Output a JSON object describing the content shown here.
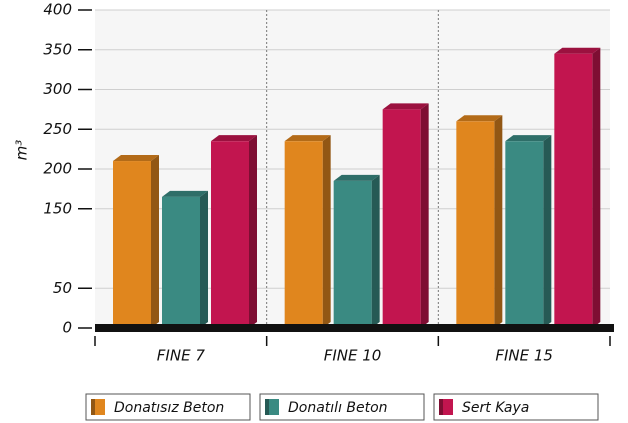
{
  "chart_data": {
    "type": "bar3d",
    "y_label": "m³",
    "categories": [
      "FINE 7",
      "FINE 10",
      "FINE 15"
    ],
    "series": [
      {
        "name": "Donatısız Beton",
        "color": "#e0861e",
        "values": [
          210,
          235,
          260
        ]
      },
      {
        "name": "Donatılı Beton",
        "color": "#3a8a82",
        "values": [
          165,
          185,
          235
        ]
      },
      {
        "name": "Sert Kaya",
        "color": "#c2154f",
        "values": [
          235,
          275,
          345
        ]
      }
    ],
    "ylim": [
      0,
      400
    ],
    "yticks": [
      0,
      50,
      150,
      200,
      250,
      300,
      350,
      400
    ],
    "grid": true
  }
}
